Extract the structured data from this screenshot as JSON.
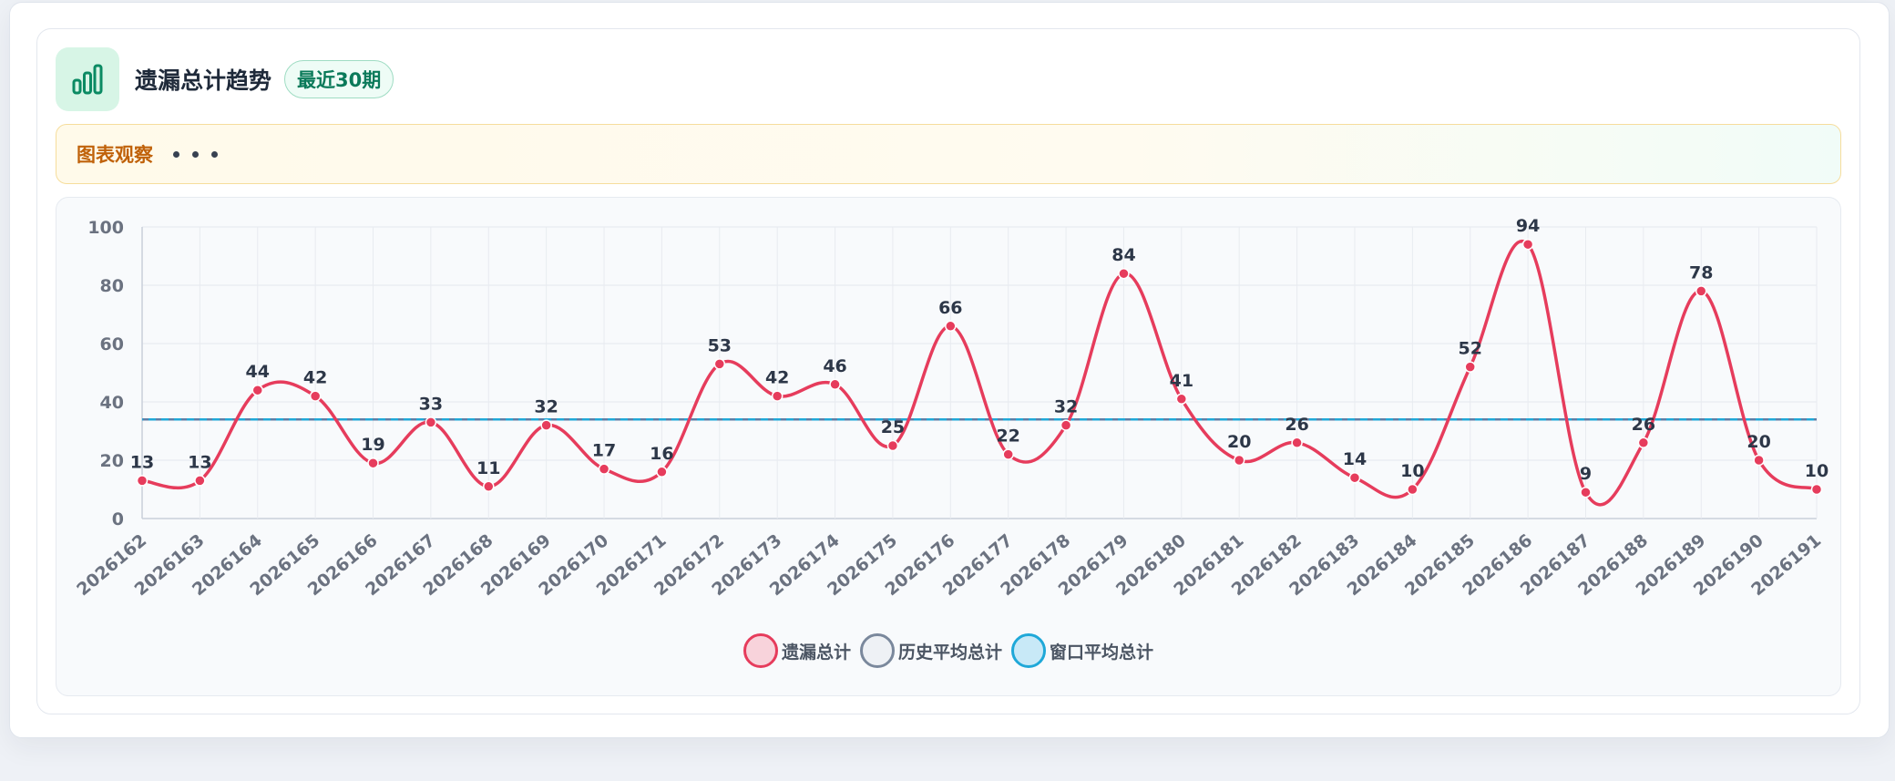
{
  "header": {
    "title": "遗漏总计趋势",
    "badge": "最近30期",
    "icon": "bar-chart-icon"
  },
  "observe": {
    "title": "图表观察",
    "icon": "more-dots-icon"
  },
  "colors": {
    "series": "#e63c5c",
    "history_avg": "#5f7ea6",
    "window_avg": "#1fa8d8",
    "accent": "#0b7a5a"
  },
  "legend": [
    {
      "label": "遗漏总计",
      "fill": "#f8d3db",
      "stroke": "#e63c5c"
    },
    {
      "label": "历史平均总计",
      "fill": "#eef1f5",
      "stroke": "#7a889c"
    },
    {
      "label": "窗口平均总计",
      "fill": "#c8e9f7",
      "stroke": "#1fa8d8"
    }
  ],
  "chart_data": {
    "type": "line",
    "categories": [
      "2026162",
      "2026163",
      "2026164",
      "2026165",
      "2026166",
      "2026167",
      "2026168",
      "2026169",
      "2026170",
      "2026171",
      "2026172",
      "2026173",
      "2026174",
      "2026175",
      "2026176",
      "2026177",
      "2026178",
      "2026179",
      "2026180",
      "2026181",
      "2026182",
      "2026183",
      "2026184",
      "2026185",
      "2026186",
      "2026187",
      "2026188",
      "2026189",
      "2026190",
      "2026191"
    ],
    "series": [
      {
        "name": "遗漏总计",
        "values": [
          13,
          13,
          44,
          42,
          19,
          33,
          11,
          32,
          17,
          16,
          53,
          42,
          46,
          25,
          66,
          22,
          32,
          84,
          41,
          20,
          26,
          14,
          10,
          52,
          94,
          9,
          26,
          78,
          20,
          10
        ],
        "style": "solid-smooth"
      },
      {
        "name": "历史平均总计",
        "values": [
          34,
          34,
          34,
          34,
          34,
          34,
          34,
          34,
          34,
          34,
          34,
          34,
          34,
          34,
          34,
          34,
          34,
          34,
          34,
          34,
          34,
          34,
          34,
          34,
          34,
          34,
          34,
          34,
          34,
          34
        ],
        "style": "dashed"
      },
      {
        "name": "窗口平均总计",
        "values": [
          34,
          34,
          34,
          34,
          34,
          34,
          34,
          34,
          34,
          34,
          34,
          34,
          34,
          34,
          34,
          34,
          34,
          34,
          34,
          34,
          34,
          34,
          34,
          34,
          34,
          34,
          34,
          34,
          34,
          34
        ],
        "style": "dashed"
      }
    ],
    "yticks": [
      "0",
      "20",
      "40",
      "60",
      "80",
      "100"
    ],
    "ylim": [
      0,
      100
    ],
    "grid": true,
    "legend_position": "bottom-center",
    "data_labels": true
  }
}
